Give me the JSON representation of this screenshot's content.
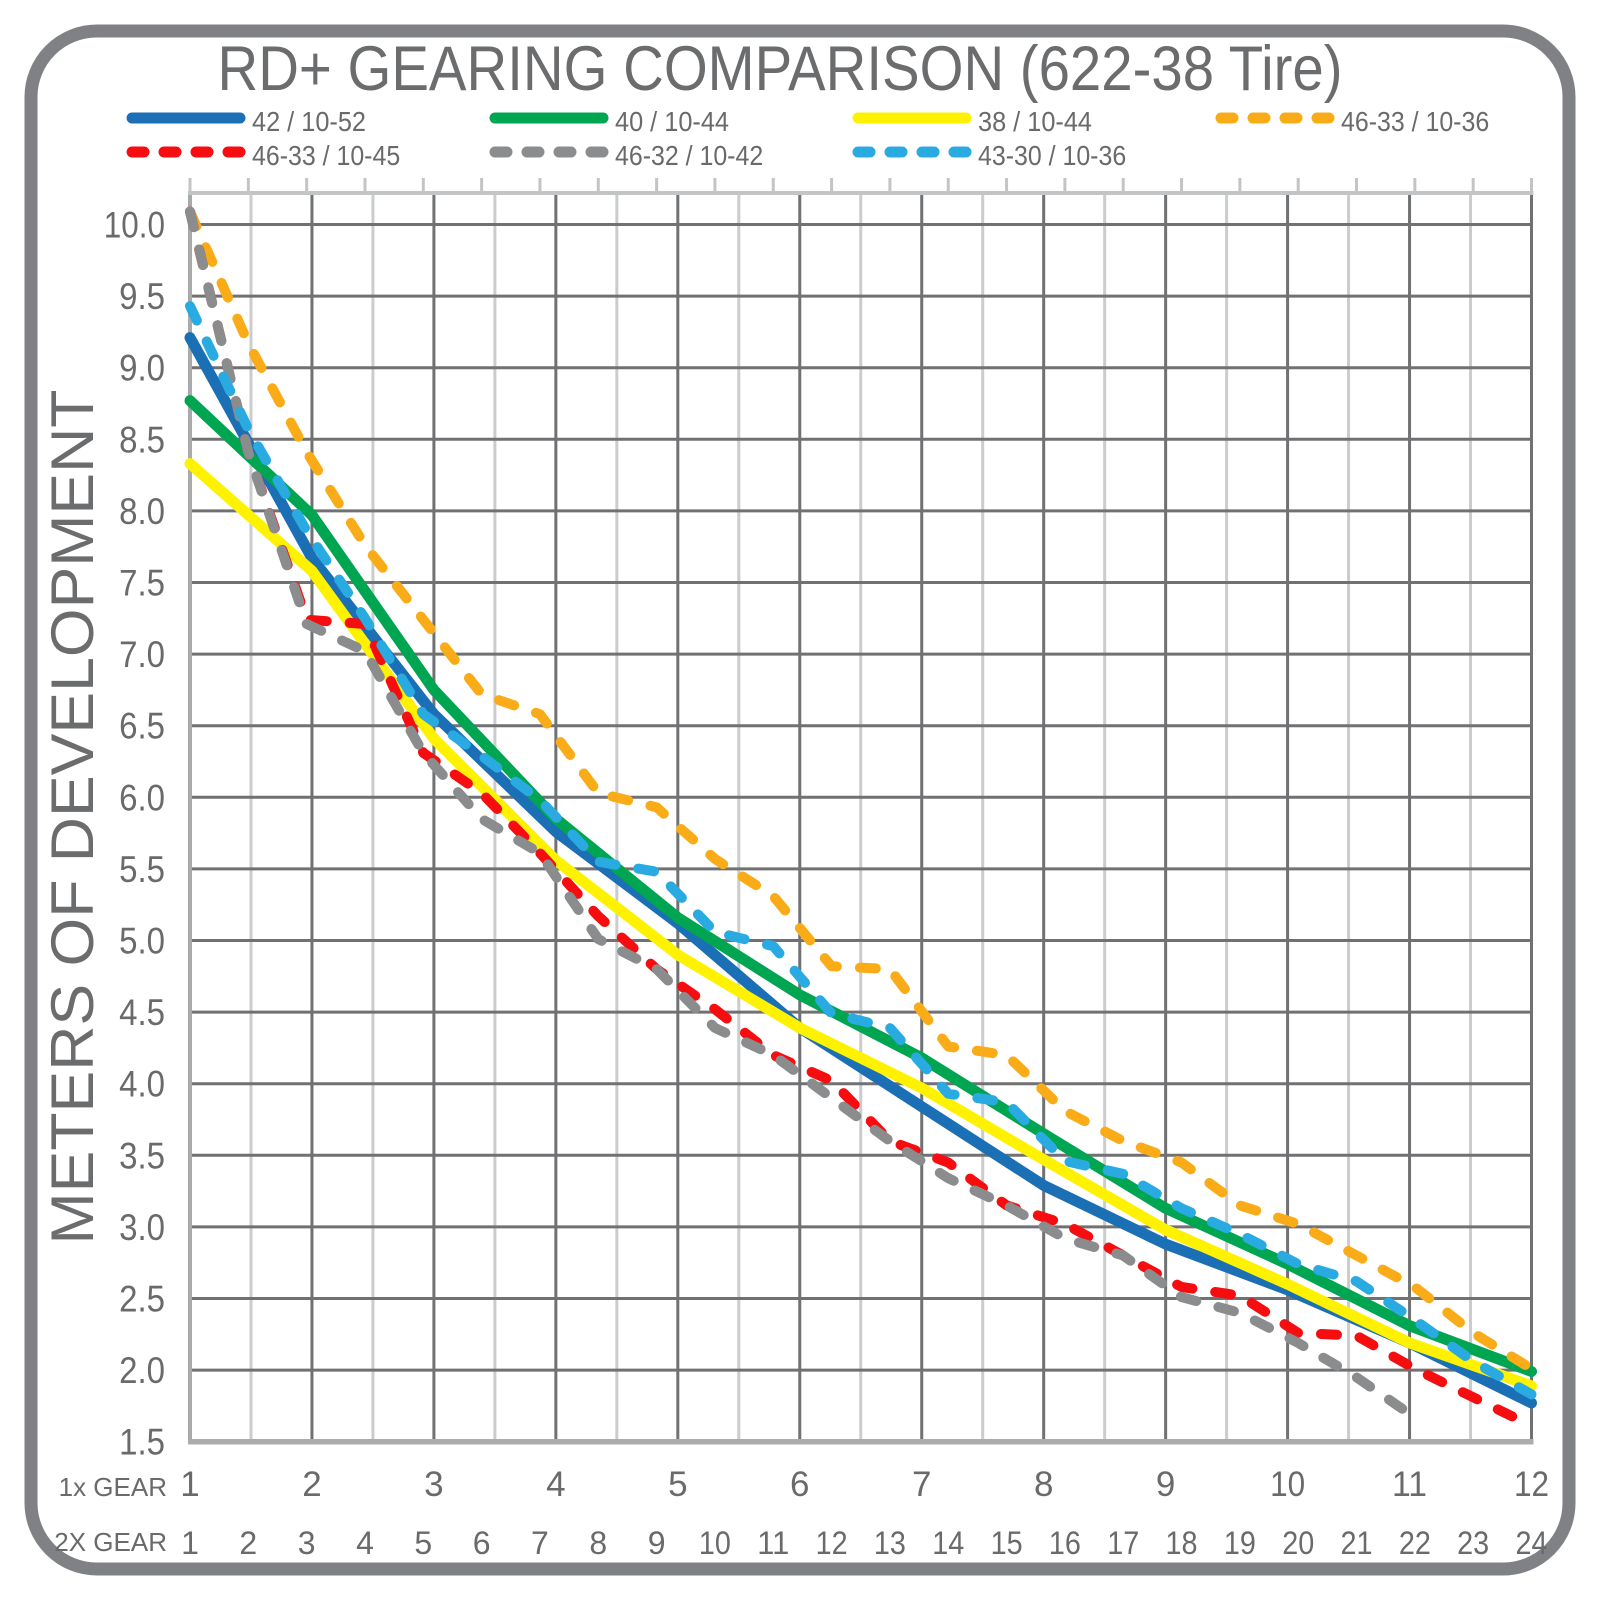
{
  "title": "RD+ GEARING COMPARISON (622-38 Tire)",
  "colors": {
    "text": "#696A6C",
    "grid_major": "#707173",
    "grid_minor": "#CBCCCD",
    "axis_border": "#ABACAE",
    "panel_frame": "#808184"
  },
  "chart_data": {
    "type": "line",
    "title": "RD+ GEARING COMPARISON (622-38 Tire)",
    "ylabel": "METERS OF DEVELOPMENT",
    "ylim": [
      1.5,
      10.25
    ],
    "grid": true,
    "legend_position": "top",
    "y_tick_labels": [
      "10.0",
      "9.5",
      "9.0",
      "8.5",
      "8.0",
      "7.5",
      "7.0",
      "6.5",
      "6.0",
      "5.5",
      "5.0",
      "4.5",
      "4.0",
      "3.5",
      "3.0",
      "2.5",
      "2.0",
      "1.5"
    ],
    "x_axis_1x": {
      "label": "1x GEAR",
      "categories": [
        "1",
        "2",
        "3",
        "4",
        "5",
        "6",
        "7",
        "8",
        "9",
        "10",
        "11",
        "12"
      ]
    },
    "x_axis_2x": {
      "label": "2X GEAR",
      "categories": [
        "1",
        "2",
        "3",
        "4",
        "5",
        "6",
        "7",
        "8",
        "9",
        "10",
        "11",
        "12",
        "13",
        "14",
        "15",
        "16",
        "17",
        "18",
        "19",
        "20",
        "21",
        "22",
        "23",
        "24"
      ]
    },
    "series": [
      {
        "name": "42 / 10-52",
        "color": "#1B6FB5",
        "line_style": "solid",
        "gear_axis": "1x",
        "values": [
          9.21,
          7.67,
          6.58,
          5.76,
          5.12,
          4.39,
          3.84,
          3.29,
          2.88,
          2.56,
          2.19,
          1.77
        ]
      },
      {
        "name": "40 / 10-44",
        "color": "#00A551",
        "line_style": "solid",
        "gear_axis": "1x",
        "values": [
          8.77,
          7.97,
          6.75,
          5.85,
          5.16,
          4.62,
          4.18,
          3.65,
          3.13,
          2.74,
          2.31,
          1.99
        ]
      },
      {
        "name": "38 / 10-44",
        "color": "#FFF200",
        "line_style": "solid",
        "gear_axis": "1x",
        "values": [
          8.33,
          7.58,
          6.41,
          5.56,
          4.9,
          4.39,
          3.97,
          3.47,
          2.98,
          2.6,
          2.19,
          1.89
        ]
      },
      {
        "name": "46-33 / 10-36",
        "color": "#FAAC18",
        "line_style": "dashed",
        "gear_axis": "2x",
        "values": [
          10.09,
          9.17,
          8.41,
          7.76,
          7.24,
          6.72,
          6.58,
          6.03,
          5.93,
          5.57,
          5.31,
          4.82,
          4.8,
          4.26,
          4.2,
          3.81,
          3.6,
          3.45,
          3.15,
          3.02,
          2.8,
          2.58,
          2.26,
          2.01
        ]
      },
      {
        "name": "46-33 / 10-45",
        "color": "#F50D0F",
        "line_style": "dashed",
        "gear_axis": "2x",
        "values": [
          10.09,
          8.41,
          7.24,
          7.21,
          6.31,
          6.03,
          5.61,
          5.17,
          4.8,
          4.52,
          4.2,
          4.02,
          3.6,
          3.45,
          3.15,
          3.02,
          2.8,
          2.58,
          2.52,
          2.26,
          2.24,
          2.01,
          1.81,
          1.61
        ]
      },
      {
        "name": "46-32 / 10-42",
        "color": "#8A8C8E",
        "line_style": "dashed",
        "gear_axis": "2x",
        "values": [
          10.09,
          8.41,
          7.21,
          7.02,
          6.31,
          5.85,
          5.61,
          5.01,
          4.8,
          4.39,
          4.2,
          3.9,
          3.6,
          3.34,
          3.15,
          2.92,
          2.8,
          2.51,
          2.4,
          2.19,
          1.95,
          1.67
        ]
      },
      {
        "name": "43-30 / 10-36",
        "color": "#29ABE2",
        "line_style": "dashed",
        "gear_axis": "2x",
        "values": [
          9.43,
          8.57,
          7.86,
          7.25,
          6.58,
          6.29,
          5.98,
          5.55,
          5.48,
          5.06,
          4.96,
          4.49,
          4.39,
          3.93,
          3.87,
          3.46,
          3.37,
          3.13,
          2.95,
          2.74,
          2.62,
          2.35,
          2.06,
          1.83
        ]
      }
    ]
  }
}
